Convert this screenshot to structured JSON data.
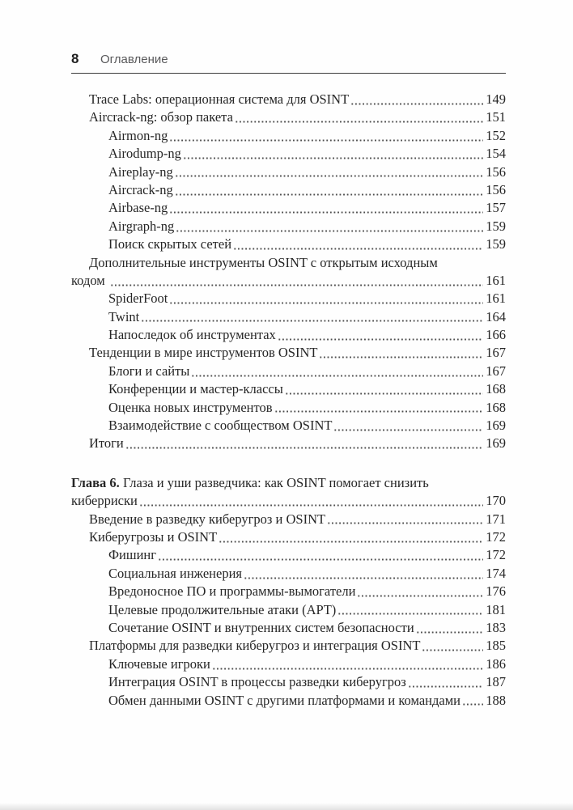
{
  "page": {
    "folio": "8",
    "running_title": "Оглавление"
  },
  "colors": {
    "ink": "#262626",
    "header_gray": "#59595b",
    "rule": "#3d3d3d",
    "dot_leader": "#4e4e4e"
  },
  "toc": {
    "entries": [
      {
        "level": 1,
        "text": "Trace Labs: операционная система для OSINT",
        "page": "149"
      },
      {
        "level": 1,
        "text": "Aircrack-ng: обзор пакета",
        "page": "151"
      },
      {
        "level": 2,
        "text": "Airmon-ng",
        "page": "152"
      },
      {
        "level": 2,
        "text": "Airodump-ng",
        "page": "154"
      },
      {
        "level": 2,
        "text": "Aireplay-ng",
        "page": "156"
      },
      {
        "level": 2,
        "text": "Aircrack-ng",
        "page": "156"
      },
      {
        "level": 2,
        "text": "Airbase-ng",
        "page": "157"
      },
      {
        "level": 2,
        "text": "Airgraph-ng",
        "page": "159"
      },
      {
        "level": 2,
        "text": "Поиск скрытых сетей",
        "page": "159"
      },
      {
        "level": 1,
        "text": "Дополнительные инструменты OSINT с открытым исходным",
        "wrap": "кодом",
        "page": "161"
      },
      {
        "level": 2,
        "text": "SpiderFoot",
        "page": "161"
      },
      {
        "level": 2,
        "text": "Twint",
        "page": "164"
      },
      {
        "level": 2,
        "text": "Напоследок об инструментах",
        "page": "166"
      },
      {
        "level": 1,
        "text": "Тенденции в мире инструментов OSINT",
        "page": "167"
      },
      {
        "level": 2,
        "text": "Блоги и сайты",
        "page": "167"
      },
      {
        "level": 2,
        "text": "Конференции и мастер-классы",
        "page": "168"
      },
      {
        "level": 2,
        "text": "Оценка новых инструментов",
        "page": "168"
      },
      {
        "level": 2,
        "text": "Взаимодействие с сообществом OSINT",
        "page": "169"
      },
      {
        "level": 1,
        "text": "Итоги",
        "page": "169"
      },
      {
        "type": "chapter",
        "label": "Глава 6.",
        "text": "Глаза и уши разведчика: как OSINT помогает снизить",
        "wrap": "киберриски",
        "page": "170"
      },
      {
        "level": 1,
        "text": "Введение в разведку киберугроз и OSINT",
        "page": "171"
      },
      {
        "level": 1,
        "text": "Киберугрозы и OSINT",
        "page": "172"
      },
      {
        "level": 2,
        "text": "Фишинг",
        "page": "172"
      },
      {
        "level": 2,
        "text": "Социальная инженерия",
        "page": "174"
      },
      {
        "level": 2,
        "text": "Вредоносное ПО и программы-вымогатели",
        "page": "176"
      },
      {
        "level": 2,
        "text": "Целевые продолжительные атаки (APT)",
        "page": "181"
      },
      {
        "level": 2,
        "text": "Сочетание OSINT и внутренних систем безопасности",
        "page": "183"
      },
      {
        "level": 1,
        "text": "Платформы для разведки киберугроз и интеграция OSINT",
        "page": "185"
      },
      {
        "level": 2,
        "text": "Ключевые игроки",
        "page": "186"
      },
      {
        "level": 2,
        "text": "Интеграция OSINT в процессы разведки киберугроз",
        "page": "187"
      },
      {
        "level": 2,
        "text": "Обмен данными OSINT с другими платформами и командами",
        "page": "188"
      }
    ]
  }
}
